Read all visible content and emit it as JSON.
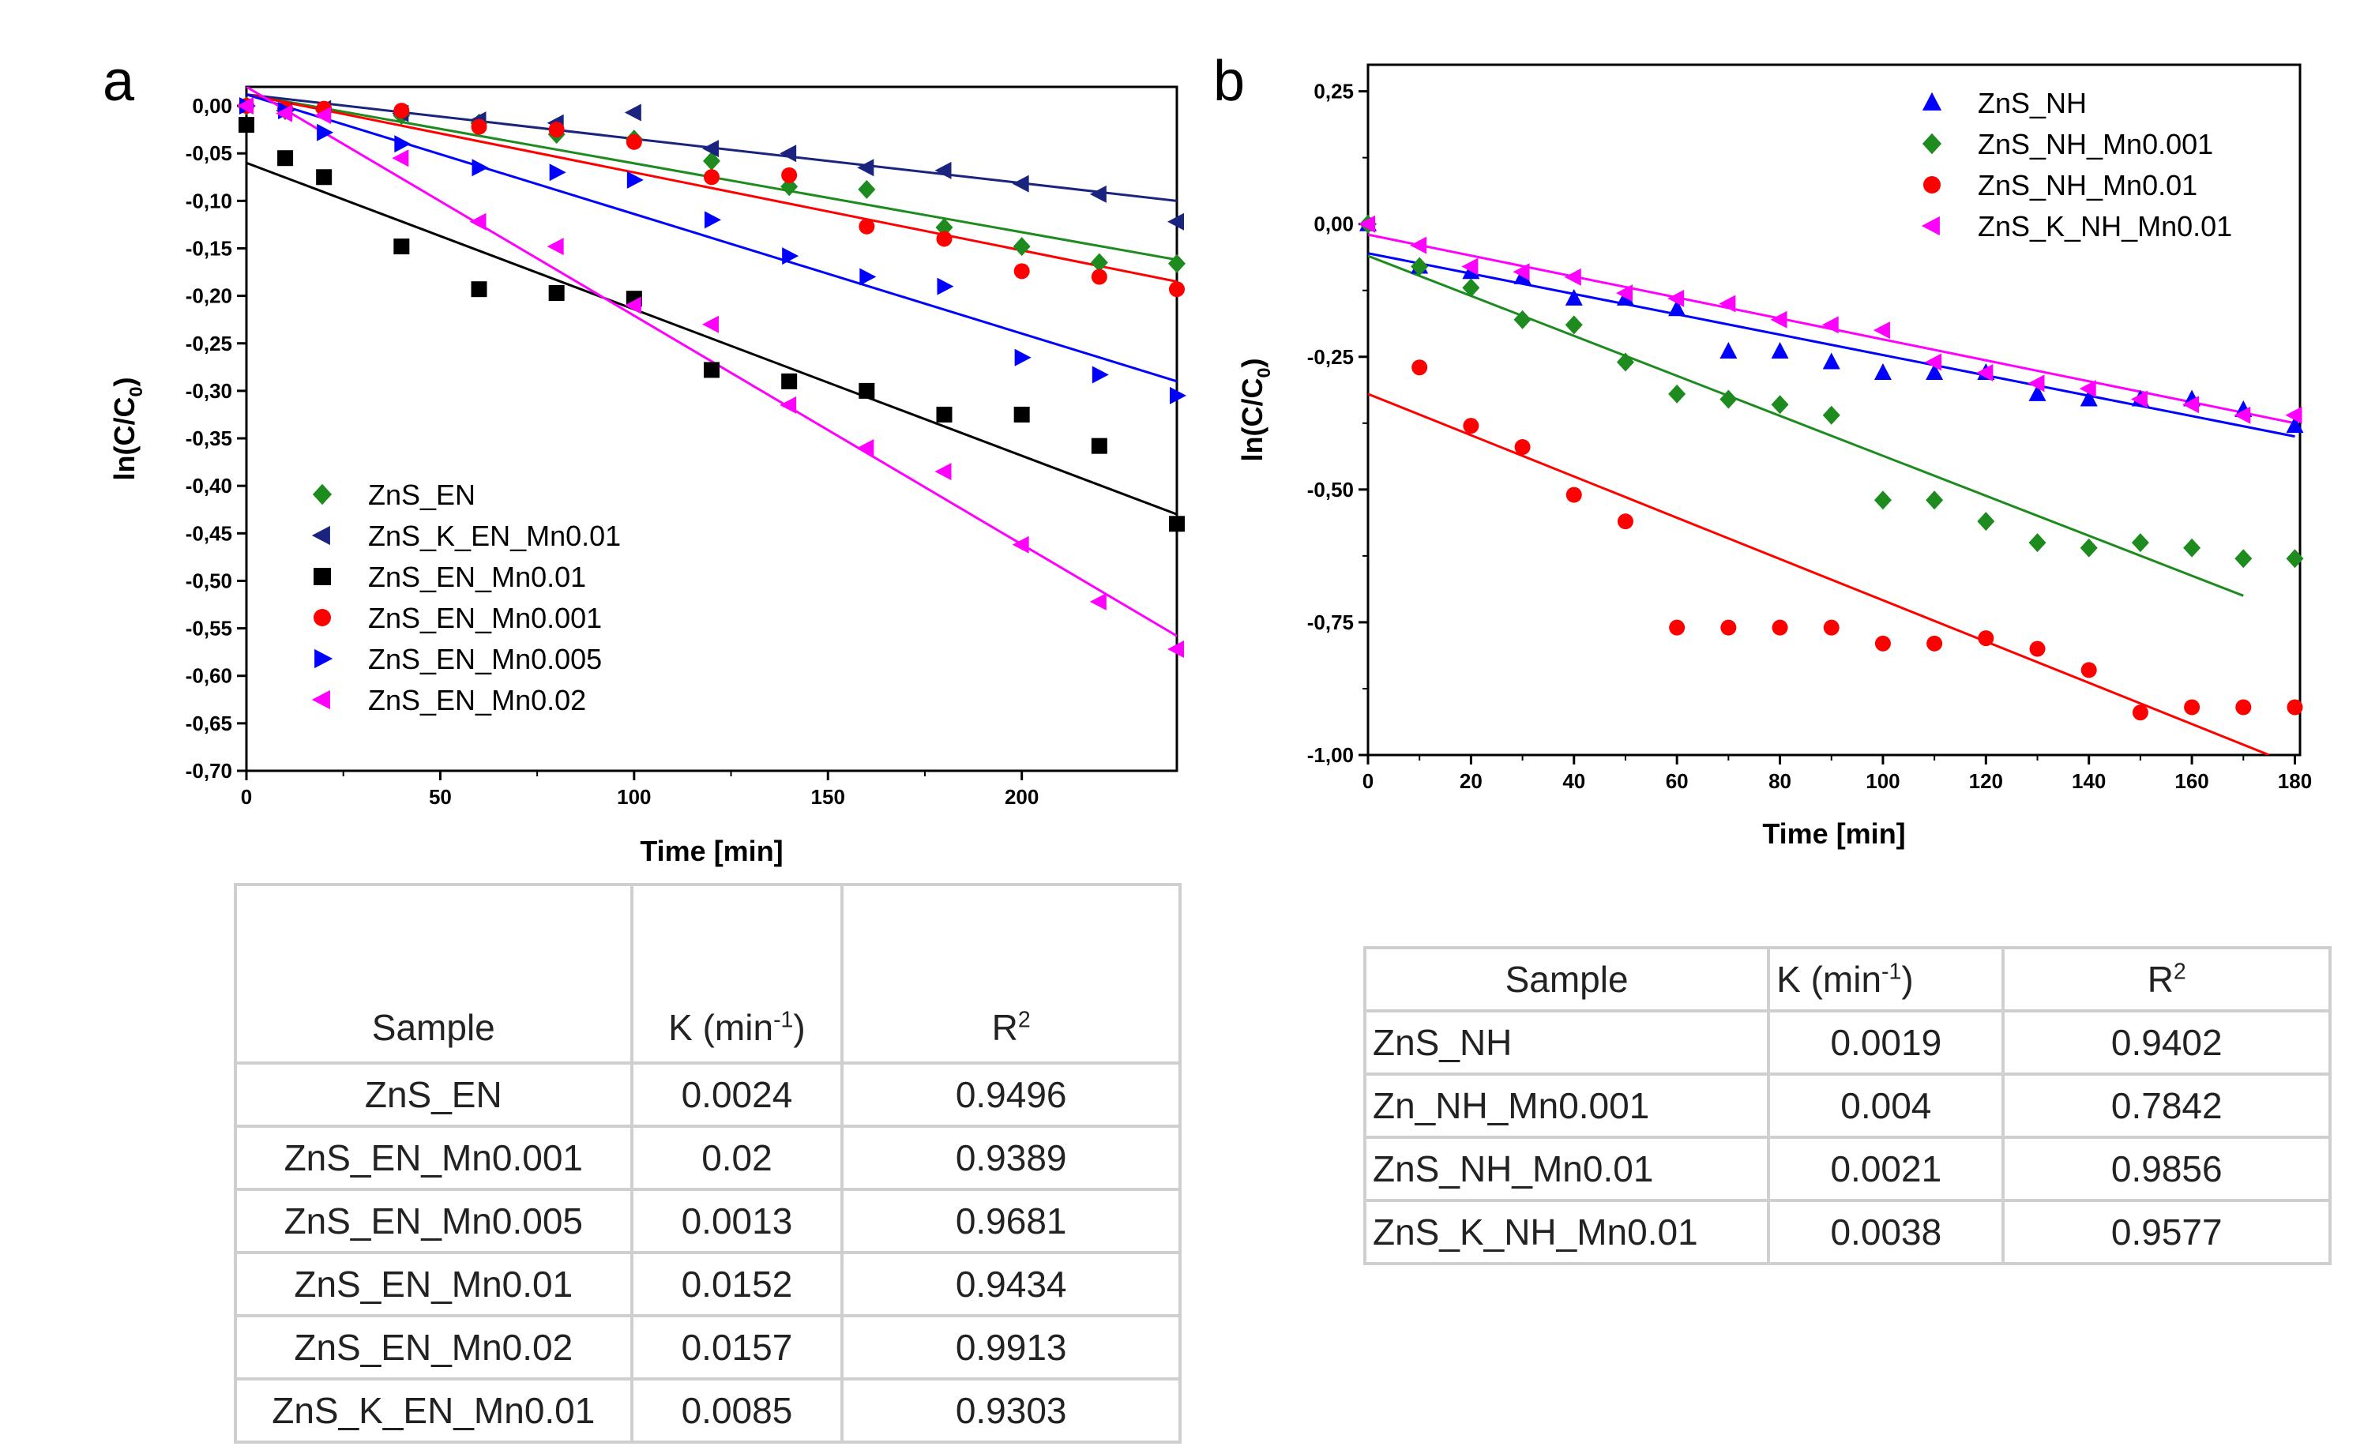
{
  "panels": {
    "a_label": "a",
    "b_label": "b"
  },
  "chart_data": [
    {
      "type": "scatter",
      "panel": "a",
      "xlabel": "Time [min]",
      "ylabel": "ln(C/C",
      "ylabel_sub": "0",
      "ylabel_close": ")",
      "xlim": [
        0,
        240
      ],
      "ylim": [
        -0.7,
        0.02
      ],
      "xticks": [
        0,
        50,
        100,
        150,
        200
      ],
      "xtick_labels": [
        "0",
        "50",
        "100",
        "150",
        "200"
      ],
      "yticks": [
        0,
        -0.05,
        -0.1,
        -0.15,
        -0.2,
        -0.25,
        -0.3,
        -0.35,
        -0.4,
        -0.45,
        -0.5,
        -0.55,
        -0.6,
        -0.65,
        -0.7
      ],
      "ytick_labels": [
        "0,00",
        "-0,05",
        "-0,10",
        "-0,15",
        "-0,20",
        "-0,25",
        "-0,30",
        "-0,35",
        "-0,40",
        "-0,45",
        "-0,50",
        "-0,55",
        "-0,60",
        "-0,65",
        "-0,70"
      ],
      "legend_position": "bottom-left",
      "series": [
        {
          "name": "ZnS_EN",
          "color": "#1e8b1e",
          "marker": "diamond",
          "x": [
            0,
            10,
            20,
            40,
            60,
            80,
            100,
            120,
            140,
            160,
            180,
            200,
            220,
            240
          ],
          "y": [
            0,
            -0.005,
            -0.005,
            -0.01,
            -0.018,
            -0.03,
            -0.035,
            -0.058,
            -0.085,
            -0.088,
            -0.128,
            -0.148,
            -0.165,
            -0.166
          ],
          "fit": [
            [
              0,
              0.012
            ],
            [
              240,
              -0.162
            ]
          ]
        },
        {
          "name": "ZnS_K_EN_Mn0.01",
          "color": "#1a237e",
          "marker": "triangle-left",
          "x": [
            0,
            10,
            20,
            40,
            60,
            80,
            100,
            120,
            140,
            160,
            180,
            200,
            220,
            240
          ],
          "y": [
            0,
            -0.005,
            -0.003,
            -0.008,
            -0.015,
            -0.018,
            -0.007,
            -0.045,
            -0.05,
            -0.065,
            -0.068,
            -0.082,
            -0.093,
            -0.122
          ],
          "fit": [
            [
              0,
              0.012
            ],
            [
              240,
              -0.1
            ]
          ]
        },
        {
          "name": "ZnS_EN_Mn0.01",
          "color": "#000000",
          "marker": "square",
          "x": [
            0,
            10,
            20,
            40,
            60,
            80,
            100,
            120,
            140,
            160,
            180,
            200,
            220,
            240
          ],
          "y": [
            -0.02,
            -0.055,
            -0.075,
            -0.148,
            -0.193,
            -0.197,
            -0.203,
            -0.278,
            -0.29,
            -0.3,
            -0.325,
            -0.325,
            -0.358,
            -0.44
          ],
          "fit": [
            [
              0,
              -0.06
            ],
            [
              240,
              -0.43
            ]
          ]
        },
        {
          "name": "ZnS_EN_Mn0.001",
          "color": "#ff0000",
          "marker": "circle",
          "x": [
            0,
            10,
            20,
            40,
            60,
            80,
            100,
            120,
            140,
            160,
            180,
            200,
            220,
            240
          ],
          "y": [
            0,
            -0.003,
            -0.003,
            -0.005,
            -0.022,
            -0.025,
            -0.038,
            -0.075,
            -0.073,
            -0.127,
            -0.14,
            -0.174,
            -0.18,
            -0.193
          ],
          "fit": [
            [
              0,
              0.012
            ],
            [
              240,
              -0.185
            ]
          ]
        },
        {
          "name": "ZnS_EN_Mn0.005",
          "color": "#0000ff",
          "marker": "triangle-right",
          "x": [
            0,
            10,
            20,
            40,
            60,
            80,
            100,
            120,
            140,
            160,
            180,
            200,
            220,
            240
          ],
          "y": [
            0,
            -0.005,
            -0.028,
            -0.04,
            -0.065,
            -0.07,
            -0.078,
            -0.12,
            -0.158,
            -0.18,
            -0.19,
            -0.265,
            -0.283,
            -0.305
          ],
          "fit": [
            [
              0,
              0.012
            ],
            [
              240,
              -0.29
            ]
          ]
        },
        {
          "name": "ZnS_EN_Mn0.02",
          "color": "#ff00ff",
          "marker": "triangle-left",
          "x": [
            0,
            10,
            20,
            40,
            60,
            80,
            100,
            120,
            140,
            160,
            180,
            200,
            220,
            240
          ],
          "y": [
            0,
            -0.008,
            -0.01,
            -0.055,
            -0.122,
            -0.148,
            -0.21,
            -0.23,
            -0.315,
            -0.36,
            -0.385,
            -0.462,
            -0.522,
            -0.572
          ],
          "fit": [
            [
              0,
              0.02
            ],
            [
              240,
              -0.558
            ]
          ]
        }
      ]
    },
    {
      "type": "scatter",
      "panel": "b",
      "xlabel": "Time [min]",
      "ylabel": "ln(C/C",
      "ylabel_sub": "0",
      "ylabel_close": ")",
      "xlim": [
        0,
        181
      ],
      "ylim": [
        -1.0,
        0.3
      ],
      "xticks": [
        0,
        20,
        40,
        60,
        80,
        100,
        120,
        140,
        160,
        180
      ],
      "xtick_labels": [
        "0",
        "20",
        "40",
        "60",
        "80",
        "100",
        "120",
        "140",
        "160",
        "180"
      ],
      "yticks": [
        0.25,
        0,
        -0.25,
        -0.5,
        -0.75,
        -1.0
      ],
      "ytick_labels": [
        "0,25",
        "0,00",
        "-0,25",
        "-0,50",
        "-0,75",
        "-1,00"
      ],
      "legend_position": "top-right",
      "series": [
        {
          "name": "ZnS_NH",
          "color": "#0000ff",
          "marker": "triangle-up",
          "x": [
            0,
            10,
            20,
            30,
            40,
            50,
            60,
            70,
            80,
            90,
            100,
            110,
            120,
            130,
            140,
            150,
            160,
            170,
            180
          ],
          "y": [
            0,
            -0.08,
            -0.09,
            -0.1,
            -0.14,
            -0.14,
            -0.16,
            -0.24,
            -0.24,
            -0.26,
            -0.28,
            -0.28,
            -0.28,
            -0.32,
            -0.33,
            -0.33,
            -0.33,
            -0.35,
            -0.38
          ],
          "fit": [
            [
              0,
              -0.055
            ],
            [
              180,
              -0.4
            ]
          ]
        },
        {
          "name": "ZnS_NH_Mn0.001",
          "color": "#1e8b1e",
          "marker": "diamond",
          "x": [
            0,
            10,
            20,
            30,
            40,
            50,
            60,
            70,
            80,
            90,
            100,
            110,
            120,
            130,
            140,
            150,
            160,
            170,
            180
          ],
          "y": [
            0,
            -0.08,
            -0.12,
            -0.18,
            -0.19,
            -0.26,
            -0.32,
            -0.33,
            -0.34,
            -0.36,
            -0.52,
            -0.52,
            -0.56,
            -0.6,
            -0.61,
            -0.6,
            -0.61,
            -0.63,
            -0.63
          ],
          "fit": [
            [
              0,
              -0.06
            ],
            [
              170,
              -0.7
            ]
          ]
        },
        {
          "name": "ZnS_NH_Mn0.01",
          "color": "#ff0000",
          "marker": "circle",
          "x": [
            10,
            20,
            30,
            40,
            50,
            60,
            70,
            80,
            90,
            100,
            110,
            120,
            130,
            140,
            150,
            160,
            170,
            180
          ],
          "y": [
            -0.27,
            -0.38,
            -0.42,
            -0.51,
            -0.56,
            -0.76,
            -0.76,
            -0.76,
            -0.76,
            -0.79,
            -0.79,
            -0.78,
            -0.8,
            -0.84,
            -0.92,
            -0.91,
            -0.91,
            -0.91
          ],
          "fit": [
            [
              0,
              -0.32
            ],
            [
              175,
              -1.0
            ]
          ]
        },
        {
          "name": "ZnS_K_NH_Mn0.01",
          "color": "#ff00ff",
          "marker": "triangle-left",
          "x": [
            0,
            10,
            20,
            30,
            40,
            50,
            60,
            70,
            80,
            90,
            100,
            110,
            120,
            130,
            140,
            150,
            160,
            170,
            180
          ],
          "y": [
            0,
            -0.04,
            -0.08,
            -0.09,
            -0.1,
            -0.13,
            -0.14,
            -0.15,
            -0.18,
            -0.19,
            -0.2,
            -0.26,
            -0.28,
            -0.3,
            -0.31,
            -0.33,
            -0.34,
            -0.36,
            -0.36
          ],
          "fit": [
            [
              0,
              -0.02
            ],
            [
              180,
              -0.375
            ]
          ]
        }
      ]
    }
  ],
  "table_a": {
    "headers": {
      "sample": "Sample",
      "k": "K (min",
      "k_sup": "-1",
      "k_close": ")",
      "r": "R",
      "r_sup": "2"
    },
    "rows": [
      {
        "sample": "ZnS_EN",
        "k": "0.0024",
        "r2": "0.9496"
      },
      {
        "sample": "ZnS_EN_Mn0.001",
        "k": "0.02",
        "r2": "0.9389"
      },
      {
        "sample": "ZnS_EN_Mn0.005",
        "k": "0.0013",
        "r2": "0.9681"
      },
      {
        "sample": "ZnS_EN_Mn0.01",
        "k": "0.0152",
        "r2": "0.9434"
      },
      {
        "sample": "ZnS_EN_Mn0.02",
        "k": "0.0157",
        "r2": "0.9913"
      },
      {
        "sample": "ZnS_K_EN_Mn0.01",
        "k": "0.0085",
        "r2": "0.9303"
      }
    ]
  },
  "table_b": {
    "headers": {
      "sample": "Sample",
      "k": "K (min",
      "k_sup": "-1",
      "k_close": ")",
      "r": "R",
      "r_sup": "2"
    },
    "rows": [
      {
        "sample": "ZnS_NH",
        "k": "0.0019",
        "r2": "0.9402"
      },
      {
        "sample": "Zn_NH_Mn0.001",
        "k": "0.004",
        "r2": "0.7842"
      },
      {
        "sample": "ZnS_NH_Mn0.01",
        "k": "0.0021",
        "r2": "0.9856"
      },
      {
        "sample": "ZnS_K_NH_Mn0.01",
        "k": "0.0038",
        "r2": "0.9577"
      }
    ]
  }
}
